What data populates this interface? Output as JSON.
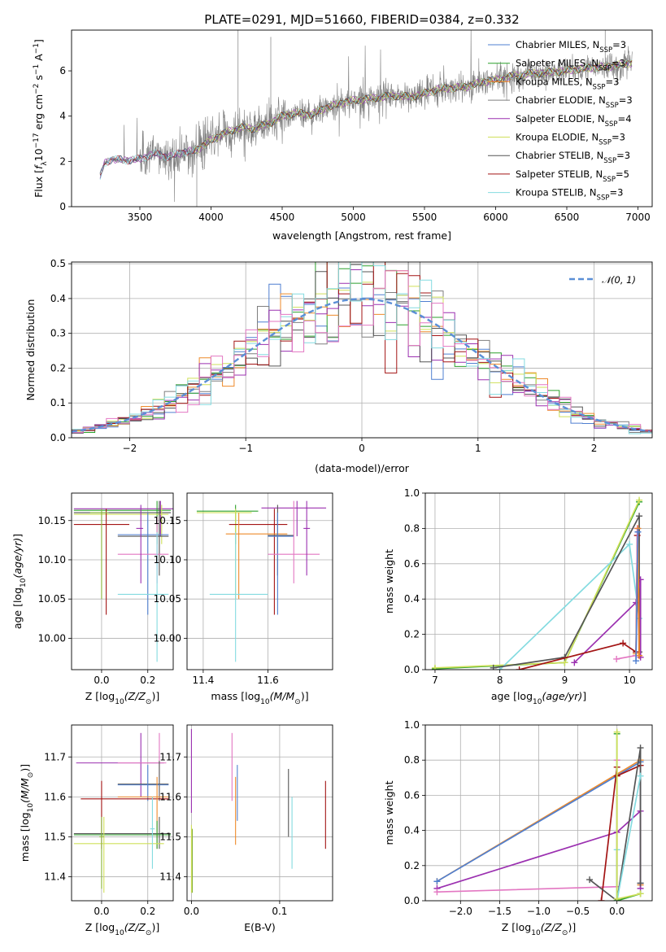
{
  "figure": {
    "title": "PLATE=0291, MJD=51660, FIBERID=0384, z=0.332"
  },
  "colors": {
    "chabrier_miles": "#4f7fd0",
    "salpeter_miles": "#2ca02c",
    "kroupa_miles": "#ee8a2a",
    "chabrier_elodie": "#7f7f7f",
    "salpeter_elodie": "#9b30b0",
    "kroupa_elodie": "#cfe05a",
    "chabrier_stelib": "#555555",
    "salpeter_stelib": "#a31414",
    "kroupa_stelib": "#84dbe0",
    "pink": "#e377c2",
    "olive": "#8ab43a",
    "data": "#808080",
    "normal": "#5b8fd6"
  },
  "chart_data": [
    {
      "id": "spectrum",
      "type": "line",
      "xlabel": "wavelength [Angstrom, rest frame]",
      "ylabel": "Flux [f_λ 10^-17 erg cm^-2 s^-1 A^-1]",
      "xlim": [
        3020,
        7100
      ],
      "ylim": [
        0,
        7.8
      ],
      "xticks": [
        3500,
        4000,
        4500,
        5000,
        5500,
        6000,
        6500,
        7000
      ],
      "yticks": [
        0,
        2,
        4,
        6
      ],
      "grid": false,
      "legend_position": "right",
      "legend": [
        {
          "label": "Chabrier MILES, N",
          "sub": "SSP",
          "suffix": "=3",
          "color": "#4f7fd0"
        },
        {
          "label": "Salpeter MILES, N",
          "sub": "SSP",
          "suffix": "=3",
          "color": "#2ca02c"
        },
        {
          "label": "Kroupa MILES, N",
          "sub": "SSP",
          "suffix": "=3",
          "color": "#ee8a2a"
        },
        {
          "label": "Chabrier ELODIE, N",
          "sub": "SSP",
          "suffix": "=3",
          "color": "#7f7f7f"
        },
        {
          "label": "Salpeter ELODIE, N",
          "sub": "SSP",
          "suffix": "=4",
          "color": "#9b30b0"
        },
        {
          "label": "Kroupa ELODIE, N",
          "sub": "SSP",
          "suffix": "=3",
          "color": "#cfe05a"
        },
        {
          "label": "Chabrier STELIB, N",
          "sub": "SSP",
          "suffix": "=3",
          "color": "#555555"
        },
        {
          "label": "Salpeter STELIB, N",
          "sub": "SSP",
          "suffix": "=5",
          "color": "#a31414"
        },
        {
          "label": "Kroupa STELIB, N",
          "sub": "SSP",
          "suffix": "=3",
          "color": "#84dbe0"
        }
      ],
      "continuum_knots": {
        "x": [
          3220,
          3250,
          3300,
          3400,
          3500,
          3600,
          3700,
          3800,
          3900,
          4000,
          4100,
          4200,
          4300,
          4400,
          4500,
          4600,
          4700,
          4800,
          4900,
          5000,
          5100,
          5200,
          5300,
          5400,
          5500,
          5600,
          5700,
          5800,
          5900,
          6000,
          6100,
          6200,
          6300,
          6400,
          6500,
          6600,
          6700,
          6800,
          6900,
          6950
        ],
        "y": [
          1.3,
          1.9,
          2.1,
          2.05,
          2.1,
          2.35,
          2.2,
          2.4,
          2.5,
          2.95,
          3.25,
          3.5,
          3.45,
          3.65,
          4.0,
          4.15,
          4.05,
          4.35,
          4.55,
          4.7,
          4.75,
          4.85,
          4.9,
          4.85,
          5.0,
          5.2,
          5.25,
          5.3,
          5.5,
          5.6,
          5.75,
          5.85,
          5.9,
          5.95,
          6.0,
          6.1,
          6.15,
          6.2,
          6.3,
          6.35
        ]
      },
      "cut_offsets": {
        "Salpeter MILES": 3880,
        "Kroupa MILES": 3880,
        "Kroupa ELODIE": 3880,
        "Chabrier ELODIE": 3880
      }
    },
    {
      "id": "residuals",
      "type": "step",
      "xlabel": "(data-model)/error",
      "ylabel": "Normed distribution",
      "xlim": [
        -2.5,
        2.5
      ],
      "ylim": [
        0,
        0.505
      ],
      "xticks": [
        -2,
        -1,
        0,
        1,
        2
      ],
      "yticks": [
        0.0,
        0.1,
        0.2,
        0.3,
        0.4,
        0.5
      ],
      "ytick_labels": [
        "0.0",
        "0.1",
        "0.2",
        "0.3",
        "0.4",
        "0.5"
      ],
      "grid": true,
      "legend_position": "top-right",
      "legend": [
        {
          "label": "𝒩(0, 1)",
          "color": "#5b8fd6",
          "style": "dashed"
        }
      ],
      "bin_width": 0.1
    },
    {
      "id": "age_vs_Z",
      "type": "errorbar",
      "xlabel": "Z [log10(Z/Z⊙)]",
      "ylabel": "age  [log10(age/yr)]",
      "xlim": [
        -0.13,
        0.31
      ],
      "ylim": [
        9.96,
        10.185
      ],
      "xticks": [
        0.0,
        0.2
      ],
      "xtick_labels": [
        "0.0",
        "0.2"
      ],
      "yticks": [
        10.0,
        10.05,
        10.1,
        10.15
      ],
      "ytick_labels": [
        "10.00",
        "10.05",
        "10.10",
        "10.15"
      ],
      "grid": true,
      "points": [
        {
          "x": 0.255,
          "xlo": -0.12,
          "xhi": 0.31,
          "y": 10.165,
          "ylo": 10.13,
          "yhi": 10.175,
          "color": "#9b30b0"
        },
        {
          "x": 0.24,
          "xlo": -0.12,
          "xhi": 0.3,
          "y": 10.163,
          "ylo": 10.12,
          "yhi": 10.175,
          "color": "#2ca02c"
        },
        {
          "x": 0.25,
          "xlo": -0.12,
          "xhi": 0.3,
          "y": 10.16,
          "ylo": 10.08,
          "yhi": 10.175,
          "color": "#555555"
        },
        {
          "x": 0.26,
          "xlo": -0.12,
          "xhi": 0.29,
          "y": 10.158,
          "ylo": 10.12,
          "yhi": 10.17,
          "color": "#cfe05a"
        },
        {
          "x": 0.02,
          "xlo": -0.12,
          "xhi": 0.12,
          "y": 10.145,
          "ylo": 10.03,
          "yhi": 10.165,
          "color": "#a31414"
        },
        {
          "x": 0.0,
          "xlo": -0.05,
          "xhi": 0.03,
          "y": 10.16,
          "ylo": 10.05,
          "yhi": 10.165,
          "color": "#8ab43a"
        },
        {
          "x": 0.25,
          "xlo": 0.07,
          "xhi": 0.29,
          "y": 10.13,
          "ylo": 10.08,
          "yhi": 10.17,
          "color": "#555555"
        },
        {
          "x": 0.2,
          "xlo": 0.07,
          "xhi": 0.29,
          "y": 10.132,
          "ylo": 10.03,
          "yhi": 10.16,
          "color": "#4f7fd0"
        },
        {
          "x": 0.24,
          "xlo": 0.07,
          "xhi": 0.29,
          "y": 10.107,
          "ylo": 10.07,
          "yhi": 10.155,
          "color": "#e377c2"
        },
        {
          "x": 0.24,
          "xlo": 0.07,
          "xhi": 0.29,
          "y": 10.056,
          "ylo": 9.97,
          "yhi": 10.135,
          "color": "#84dbe0"
        },
        {
          "x": 0.17,
          "xlo": 0.15,
          "xhi": 0.18,
          "y": 10.14,
          "ylo": 10.07,
          "yhi": 10.17,
          "color": "#9b30b0"
        }
      ]
    },
    {
      "id": "age_vs_mass",
      "type": "errorbar",
      "xlabel": "mass [log10(M/M⊙)]",
      "ylabel": "",
      "xlim": [
        11.35,
        11.8
      ],
      "ylim": [
        9.96,
        10.185
      ],
      "xticks": [
        11.4,
        11.6
      ],
      "xtick_labels": [
        "11.4",
        "11.6"
      ],
      "yticks": [
        10.0,
        10.05,
        10.1,
        10.15
      ],
      "ytick_labels": [
        "10.00",
        "10.05",
        "10.10",
        "10.15"
      ],
      "grid": true,
      "points": [
        {
          "x": 11.69,
          "xlo": 11.58,
          "xhi": 11.78,
          "y": 10.166,
          "ylo": 10.13,
          "yhi": 10.175,
          "color": "#9b30b0"
        },
        {
          "x": 11.5,
          "xlo": 11.38,
          "xhi": 11.57,
          "y": 10.162,
          "ylo": 10.12,
          "yhi": 10.17,
          "color": "#2ca02c"
        },
        {
          "x": 11.5,
          "xlo": 11.38,
          "xhi": 11.55,
          "y": 10.16,
          "ylo": 10.05,
          "yhi": 10.165,
          "color": "#cfe05a"
        },
        {
          "x": 11.62,
          "xlo": 11.48,
          "xhi": 11.66,
          "y": 10.145,
          "ylo": 10.03,
          "yhi": 10.165,
          "color": "#a31414"
        },
        {
          "x": 11.51,
          "xlo": 11.47,
          "xhi": 11.66,
          "y": 10.133,
          "ylo": 10.05,
          "yhi": 10.16,
          "color": "#ee8a2a"
        },
        {
          "x": 11.63,
          "xlo": 11.6,
          "xhi": 11.68,
          "y": 10.131,
          "ylo": 10.08,
          "yhi": 10.17,
          "color": "#555555"
        },
        {
          "x": 11.63,
          "xlo": 11.6,
          "xhi": 11.68,
          "y": 10.13,
          "ylo": 10.03,
          "yhi": 10.16,
          "color": "#4f7fd0"
        },
        {
          "x": 11.68,
          "xlo": 11.6,
          "xhi": 11.76,
          "y": 10.107,
          "ylo": 10.07,
          "yhi": 10.175,
          "color": "#e377c2"
        },
        {
          "x": 11.5,
          "xlo": 11.42,
          "xhi": 11.6,
          "y": 10.056,
          "ylo": 9.97,
          "yhi": 10.135,
          "color": "#84dbe0"
        },
        {
          "x": 11.72,
          "xlo": 11.71,
          "xhi": 11.73,
          "y": 10.14,
          "ylo": 10.08,
          "yhi": 10.175,
          "color": "#9b30b0"
        }
      ]
    },
    {
      "id": "weight_vs_age",
      "type": "line",
      "xlabel": "age  [log10(age/yr)]",
      "ylabel": "mass weight",
      "xlim": [
        6.85,
        10.35
      ],
      "ylim": [
        0,
        1
      ],
      "xticks": [
        7,
        8,
        9,
        10
      ],
      "yticks": [
        0.0,
        0.2,
        0.4,
        0.6,
        0.8,
        1.0
      ],
      "ytick_labels": [
        "0.0",
        "0.2",
        "0.4",
        "0.6",
        "0.8",
        "1.0"
      ],
      "grid": true,
      "series": [
        {
          "color": "#2ca02c",
          "x": [
            7.0,
            9.0,
            10.15
          ],
          "y": [
            0.005,
            0.04,
            0.95
          ]
        },
        {
          "color": "#cfe05a",
          "x": [
            7.0,
            9.0,
            10.15
          ],
          "y": [
            0.01,
            0.04,
            0.96
          ]
        },
        {
          "color": "#84dbe0",
          "x": [
            8.0,
            10.0,
            10.15
          ],
          "y": [
            0.0,
            0.71,
            0.29
          ]
        },
        {
          "color": "#555555",
          "x": [
            7.9,
            9.0,
            10.15,
            10.15
          ],
          "y": [
            0.01,
            0.07,
            0.87,
            0.1
          ]
        },
        {
          "color": "#9b30b0",
          "x": [
            9.15,
            10.1,
            10.17,
            10.17
          ],
          "y": [
            0.04,
            0.38,
            0.51,
            0.07
          ]
        },
        {
          "color": "#a31414",
          "x": [
            8.3,
            9.9,
            10.1,
            10.12,
            10.15
          ],
          "y": [
            0.0,
            0.15,
            0.1,
            0.76,
            0.08
          ]
        },
        {
          "color": "#e377c2",
          "x": [
            9.8,
            10.1,
            10.12
          ],
          "y": [
            0.06,
            0.08,
            0.8
          ]
        },
        {
          "color": "#ee8a2a",
          "x": [
            10.1,
            10.13,
            10.15
          ],
          "y": [
            0.09,
            0.8,
            0.08
          ]
        },
        {
          "color": "#4f7fd0",
          "x": [
            10.1,
            10.13
          ],
          "y": [
            0.05,
            0.78
          ]
        }
      ]
    },
    {
      "id": "mass_vs_Z",
      "type": "errorbar",
      "xlabel": "Z [log10(Z/Z⊙)]",
      "ylabel": "mass [log10(M/M⊙)]",
      "xlim": [
        -0.13,
        0.31
      ],
      "ylim": [
        11.34,
        11.78
      ],
      "xticks": [
        0.0,
        0.2
      ],
      "xtick_labels": [
        "0.0",
        "0.2"
      ],
      "yticks": [
        11.4,
        11.5,
        11.6,
        11.7
      ],
      "ytick_labels": [
        "11.4",
        "11.5",
        "11.6",
        "11.7"
      ],
      "grid": true,
      "points": [
        {
          "x": 0.17,
          "xlo": -0.11,
          "xhi": 0.27,
          "y": 11.685,
          "ylo": 11.6,
          "yhi": 11.76,
          "color": "#9b30b0"
        },
        {
          "x": 0.25,
          "xlo": 0.07,
          "xhi": 0.28,
          "y": 11.685,
          "ylo": 11.6,
          "yhi": 11.76,
          "color": "#e377c2"
        },
        {
          "x": 0.25,
          "xlo": 0.07,
          "xhi": 0.29,
          "y": 11.632,
          "ylo": 11.59,
          "yhi": 11.69,
          "color": "#555555"
        },
        {
          "x": 0.2,
          "xlo": 0.07,
          "xhi": 0.29,
          "y": 11.63,
          "ylo": 11.59,
          "yhi": 11.68,
          "color": "#4f7fd0"
        },
        {
          "x": 0.0,
          "xlo": -0.09,
          "xhi": 0.29,
          "y": 11.595,
          "ylo": 11.47,
          "yhi": 11.64,
          "color": "#a31414"
        },
        {
          "x": 0.24,
          "xlo": 0.07,
          "xhi": 0.29,
          "y": 11.6,
          "ylo": 11.47,
          "yhi": 11.65,
          "color": "#ee8a2a"
        },
        {
          "x": 0.25,
          "xlo": -0.12,
          "xhi": 0.3,
          "y": 11.508,
          "ylo": 11.47,
          "yhi": 11.55,
          "color": "#555555"
        },
        {
          "x": 0.24,
          "xlo": -0.12,
          "xhi": 0.3,
          "y": 11.505,
          "ylo": 11.47,
          "yhi": 11.54,
          "color": "#2ca02c"
        },
        {
          "x": 0.01,
          "xlo": -0.12,
          "xhi": 0.27,
          "y": 11.483,
          "ylo": 11.36,
          "yhi": 11.55,
          "color": "#cfe05a"
        },
        {
          "x": 0.0,
          "xlo": -0.01,
          "xhi": 0.01,
          "y": 11.5,
          "ylo": 11.37,
          "yhi": 11.55,
          "color": "#8ab43a"
        },
        {
          "x": 0.22,
          "xlo": 0.21,
          "xhi": 0.23,
          "y": 11.52,
          "ylo": 11.42,
          "yhi": 11.6,
          "color": "#84dbe0"
        }
      ]
    },
    {
      "id": "mass_vs_ebv",
      "type": "errorbar",
      "xlabel": "E(B-V)",
      "ylabel": "",
      "xlim": [
        -0.005,
        0.16
      ],
      "ylim": [
        11.34,
        11.78
      ],
      "xticks": [
        0.0,
        0.1
      ],
      "xtick_labels": [
        "0.0",
        "0.1"
      ],
      "yticks": [
        11.4,
        11.5,
        11.6,
        11.7
      ],
      "ytick_labels": [
        "11.4",
        "11.5",
        "11.6",
        "11.7"
      ],
      "grid": true,
      "points": [
        {
          "x": 0.0,
          "y": 11.67,
          "ylo": 11.56,
          "yhi": 11.77,
          "color": "#9b30b0"
        },
        {
          "x": 0.0,
          "y": 11.47,
          "ylo": 11.36,
          "yhi": 11.53,
          "color": "#cfe05a"
        },
        {
          "x": 0.001,
          "y": 11.45,
          "ylo": 11.36,
          "yhi": 11.52,
          "color": "#8ab43a"
        },
        {
          "x": 0.046,
          "y": 11.67,
          "ylo": 11.59,
          "yhi": 11.76,
          "color": "#e377c2"
        },
        {
          "x": 0.05,
          "y": 11.6,
          "ylo": 11.48,
          "yhi": 11.65,
          "color": "#ee8a2a"
        },
        {
          "x": 0.052,
          "y": 11.62,
          "ylo": 11.54,
          "yhi": 11.68,
          "color": "#4f7fd0"
        },
        {
          "x": 0.11,
          "y": 11.58,
          "ylo": 11.5,
          "yhi": 11.67,
          "color": "#555555"
        },
        {
          "x": 0.114,
          "y": 11.52,
          "ylo": 11.42,
          "yhi": 11.6,
          "color": "#84dbe0"
        },
        {
          "x": 0.152,
          "y": 11.56,
          "ylo": 11.47,
          "yhi": 11.64,
          "color": "#a31414"
        }
      ]
    },
    {
      "id": "weight_vs_Z",
      "type": "line",
      "xlabel": "Z [log10(Z/Z⊙)]",
      "ylabel": "mass weight",
      "xlim": [
        -2.45,
        0.45
      ],
      "ylim": [
        0,
        1
      ],
      "xticks": [
        -2.0,
        -1.5,
        -1.0,
        -0.5,
        0.0
      ],
      "xtick_labels": [
        "−2.0",
        "−1.5",
        "−1.0",
        "−0.5",
        "0.0"
      ],
      "yticks": [
        0.0,
        0.2,
        0.4,
        0.6,
        0.8,
        1.0
      ],
      "ytick_labels": [
        "0.0",
        "0.2",
        "0.4",
        "0.6",
        "0.8",
        "1.0"
      ],
      "grid": true,
      "series": [
        {
          "color": "#ee8a2a",
          "x": [
            -2.3,
            0.3,
            0.3
          ],
          "y": [
            0.11,
            0.8,
            0.09
          ]
        },
        {
          "color": "#4f7fd0",
          "x": [
            -2.3,
            0.3,
            0.3
          ],
          "y": [
            0.11,
            0.79,
            0.1
          ]
        },
        {
          "color": "#9b30b0",
          "x": [
            -2.3,
            0.0,
            0.3,
            0.3
          ],
          "y": [
            0.07,
            0.39,
            0.51,
            0.07
          ]
        },
        {
          "color": "#e377c2",
          "x": [
            -2.3,
            0.0,
            0.0
          ],
          "y": [
            0.05,
            0.08,
            0.8
          ]
        },
        {
          "color": "#a31414",
          "x": [
            -0.2,
            0.0,
            0.0,
            0.3
          ],
          "y": [
            0.0,
            0.76,
            0.71,
            0.77
          ]
        },
        {
          "color": "#555555",
          "x": [
            -0.35,
            0.0,
            0.3,
            0.3
          ],
          "y": [
            0.12,
            0.0,
            0.87,
            0.1
          ]
        },
        {
          "color": "#84dbe0",
          "x": [
            0.0,
            0.0,
            0.3
          ],
          "y": [
            0.29,
            0.0,
            0.71
          ]
        },
        {
          "color": "#2ca02c",
          "x": [
            0.0,
            0.0,
            0.3
          ],
          "y": [
            0.95,
            0.0,
            0.04
          ]
        },
        {
          "color": "#cfe05a",
          "x": [
            0.0,
            0.0,
            0.3
          ],
          "y": [
            0.96,
            0.01,
            0.04
          ]
        }
      ]
    }
  ]
}
